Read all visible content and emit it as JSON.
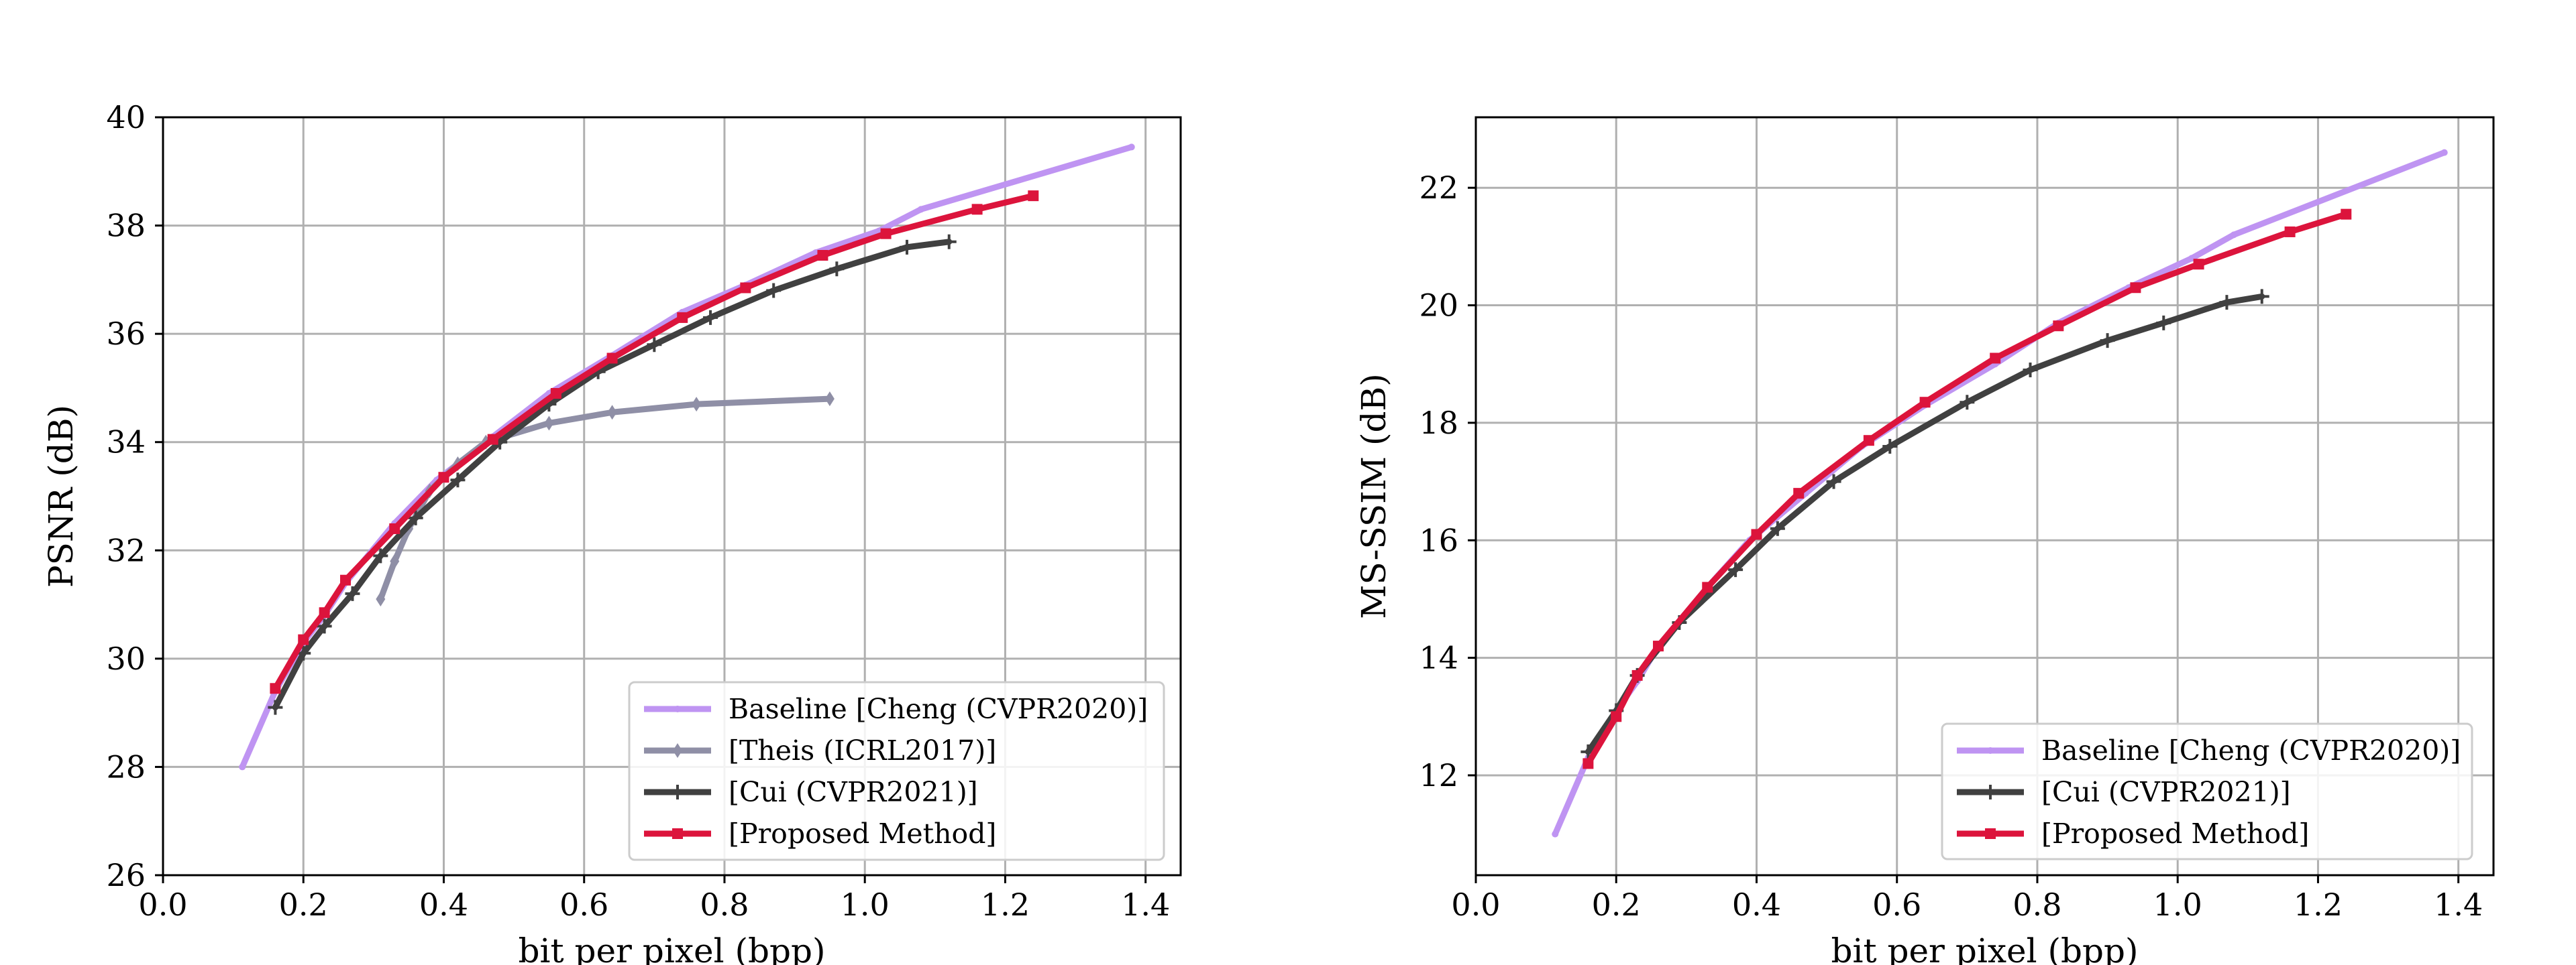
{
  "chart_data": [
    {
      "type": "line",
      "title": "",
      "xlabel": "bit per pixel (bpp)",
      "ylabel": "PSNR (dB)",
      "xlim": [
        0.0,
        1.45
      ],
      "ylim": [
        26,
        40
      ],
      "xticks": [
        "0.0",
        "0.2",
        "0.4",
        "0.6",
        "0.8",
        "1.0",
        "1.2",
        "1.4"
      ],
      "yticks": [
        "26",
        "28",
        "30",
        "32",
        "34",
        "36",
        "38",
        "40"
      ],
      "grid": true,
      "legend_position": "bottom-right",
      "series": [
        {
          "name": "Baseline [Cheng (CVPR2020)]",
          "color": "#bf94f2",
          "marker": "point",
          "x": [
            0.113,
            0.16,
            0.2,
            0.23,
            0.26,
            0.33,
            0.39,
            0.47,
            0.55,
            0.64,
            0.74,
            0.83,
            0.93,
            1.02,
            1.08,
            1.38
          ],
          "y": [
            28.0,
            29.4,
            30.3,
            30.8,
            31.4,
            32.5,
            33.3,
            34.1,
            34.9,
            35.6,
            36.4,
            36.9,
            37.5,
            37.9,
            38.3,
            39.45
          ]
        },
        {
          "name": "[Theis (ICRL2017)]",
          "color": "#8f8fa6",
          "marker": "diamond",
          "x": [
            0.31,
            0.33,
            0.35,
            0.38,
            0.42,
            0.46,
            0.55,
            0.64,
            0.76,
            0.95
          ],
          "y": [
            31.1,
            31.8,
            32.4,
            33.1,
            33.6,
            34.0,
            34.35,
            34.55,
            34.7,
            34.8
          ]
        },
        {
          "name": "[Cui (CVPR2021)]",
          "color": "#404040",
          "marker": "plus",
          "x": [
            0.16,
            0.2,
            0.23,
            0.27,
            0.31,
            0.36,
            0.42,
            0.48,
            0.55,
            0.62,
            0.7,
            0.78,
            0.87,
            0.96,
            1.06,
            1.12
          ],
          "y": [
            29.1,
            30.1,
            30.6,
            31.2,
            31.9,
            32.6,
            33.3,
            34.0,
            34.7,
            35.3,
            35.8,
            36.3,
            36.8,
            37.2,
            37.6,
            37.7
          ]
        },
        {
          "name": "[Proposed Method]",
          "color": "#dc143c",
          "marker": "square",
          "x": [
            0.16,
            0.2,
            0.23,
            0.26,
            0.33,
            0.4,
            0.47,
            0.56,
            0.64,
            0.74,
            0.83,
            0.94,
            1.03,
            1.16,
            1.24
          ],
          "y": [
            29.45,
            30.35,
            30.85,
            31.45,
            32.4,
            33.35,
            34.05,
            34.9,
            35.55,
            36.3,
            36.85,
            37.45,
            37.85,
            38.3,
            38.55
          ]
        }
      ]
    },
    {
      "type": "line",
      "title": "",
      "xlabel": "bit per pixel (bpp)",
      "ylabel": "MS-SSIM (dB)",
      "xlim": [
        0.0,
        1.45
      ],
      "ylim": [
        10.3,
        23.2
      ],
      "xticks": [
        "0.0",
        "0.2",
        "0.4",
        "0.6",
        "0.8",
        "1.0",
        "1.2",
        "1.4"
      ],
      "yticks": [
        "12",
        "14",
        "16",
        "18",
        "20",
        "22"
      ],
      "grid": true,
      "legend_position": "bottom-right",
      "series": [
        {
          "name": "Baseline [Cheng (CVPR2020)]",
          "color": "#bf94f2",
          "marker": "point",
          "x": [
            0.113,
            0.16,
            0.2,
            0.23,
            0.26,
            0.33,
            0.39,
            0.47,
            0.55,
            0.64,
            0.74,
            0.83,
            0.93,
            1.02,
            1.08,
            1.38
          ],
          "y": [
            11.0,
            12.3,
            13.1,
            13.6,
            14.2,
            15.2,
            16.0,
            16.8,
            17.6,
            18.3,
            19.0,
            19.7,
            20.3,
            20.8,
            21.2,
            22.6
          ]
        },
        {
          "name": "[Cui (CVPR2021)]",
          "color": "#404040",
          "marker": "plus",
          "x": [
            0.16,
            0.2,
            0.23,
            0.29,
            0.37,
            0.43,
            0.51,
            0.59,
            0.7,
            0.79,
            0.9,
            0.98,
            1.07,
            1.12
          ],
          "y": [
            12.4,
            13.1,
            13.7,
            14.6,
            15.5,
            16.2,
            17.0,
            17.6,
            18.35,
            18.9,
            19.4,
            19.7,
            20.05,
            20.15
          ]
        },
        {
          "name": "[Proposed Method]",
          "color": "#dc143c",
          "marker": "square",
          "x": [
            0.16,
            0.2,
            0.23,
            0.26,
            0.33,
            0.4,
            0.46,
            0.56,
            0.64,
            0.74,
            0.83,
            0.94,
            1.03,
            1.16,
            1.24
          ],
          "y": [
            12.2,
            13.0,
            13.7,
            14.2,
            15.2,
            16.1,
            16.8,
            17.7,
            18.35,
            19.1,
            19.65,
            20.3,
            20.7,
            21.25,
            21.55
          ]
        }
      ]
    }
  ]
}
